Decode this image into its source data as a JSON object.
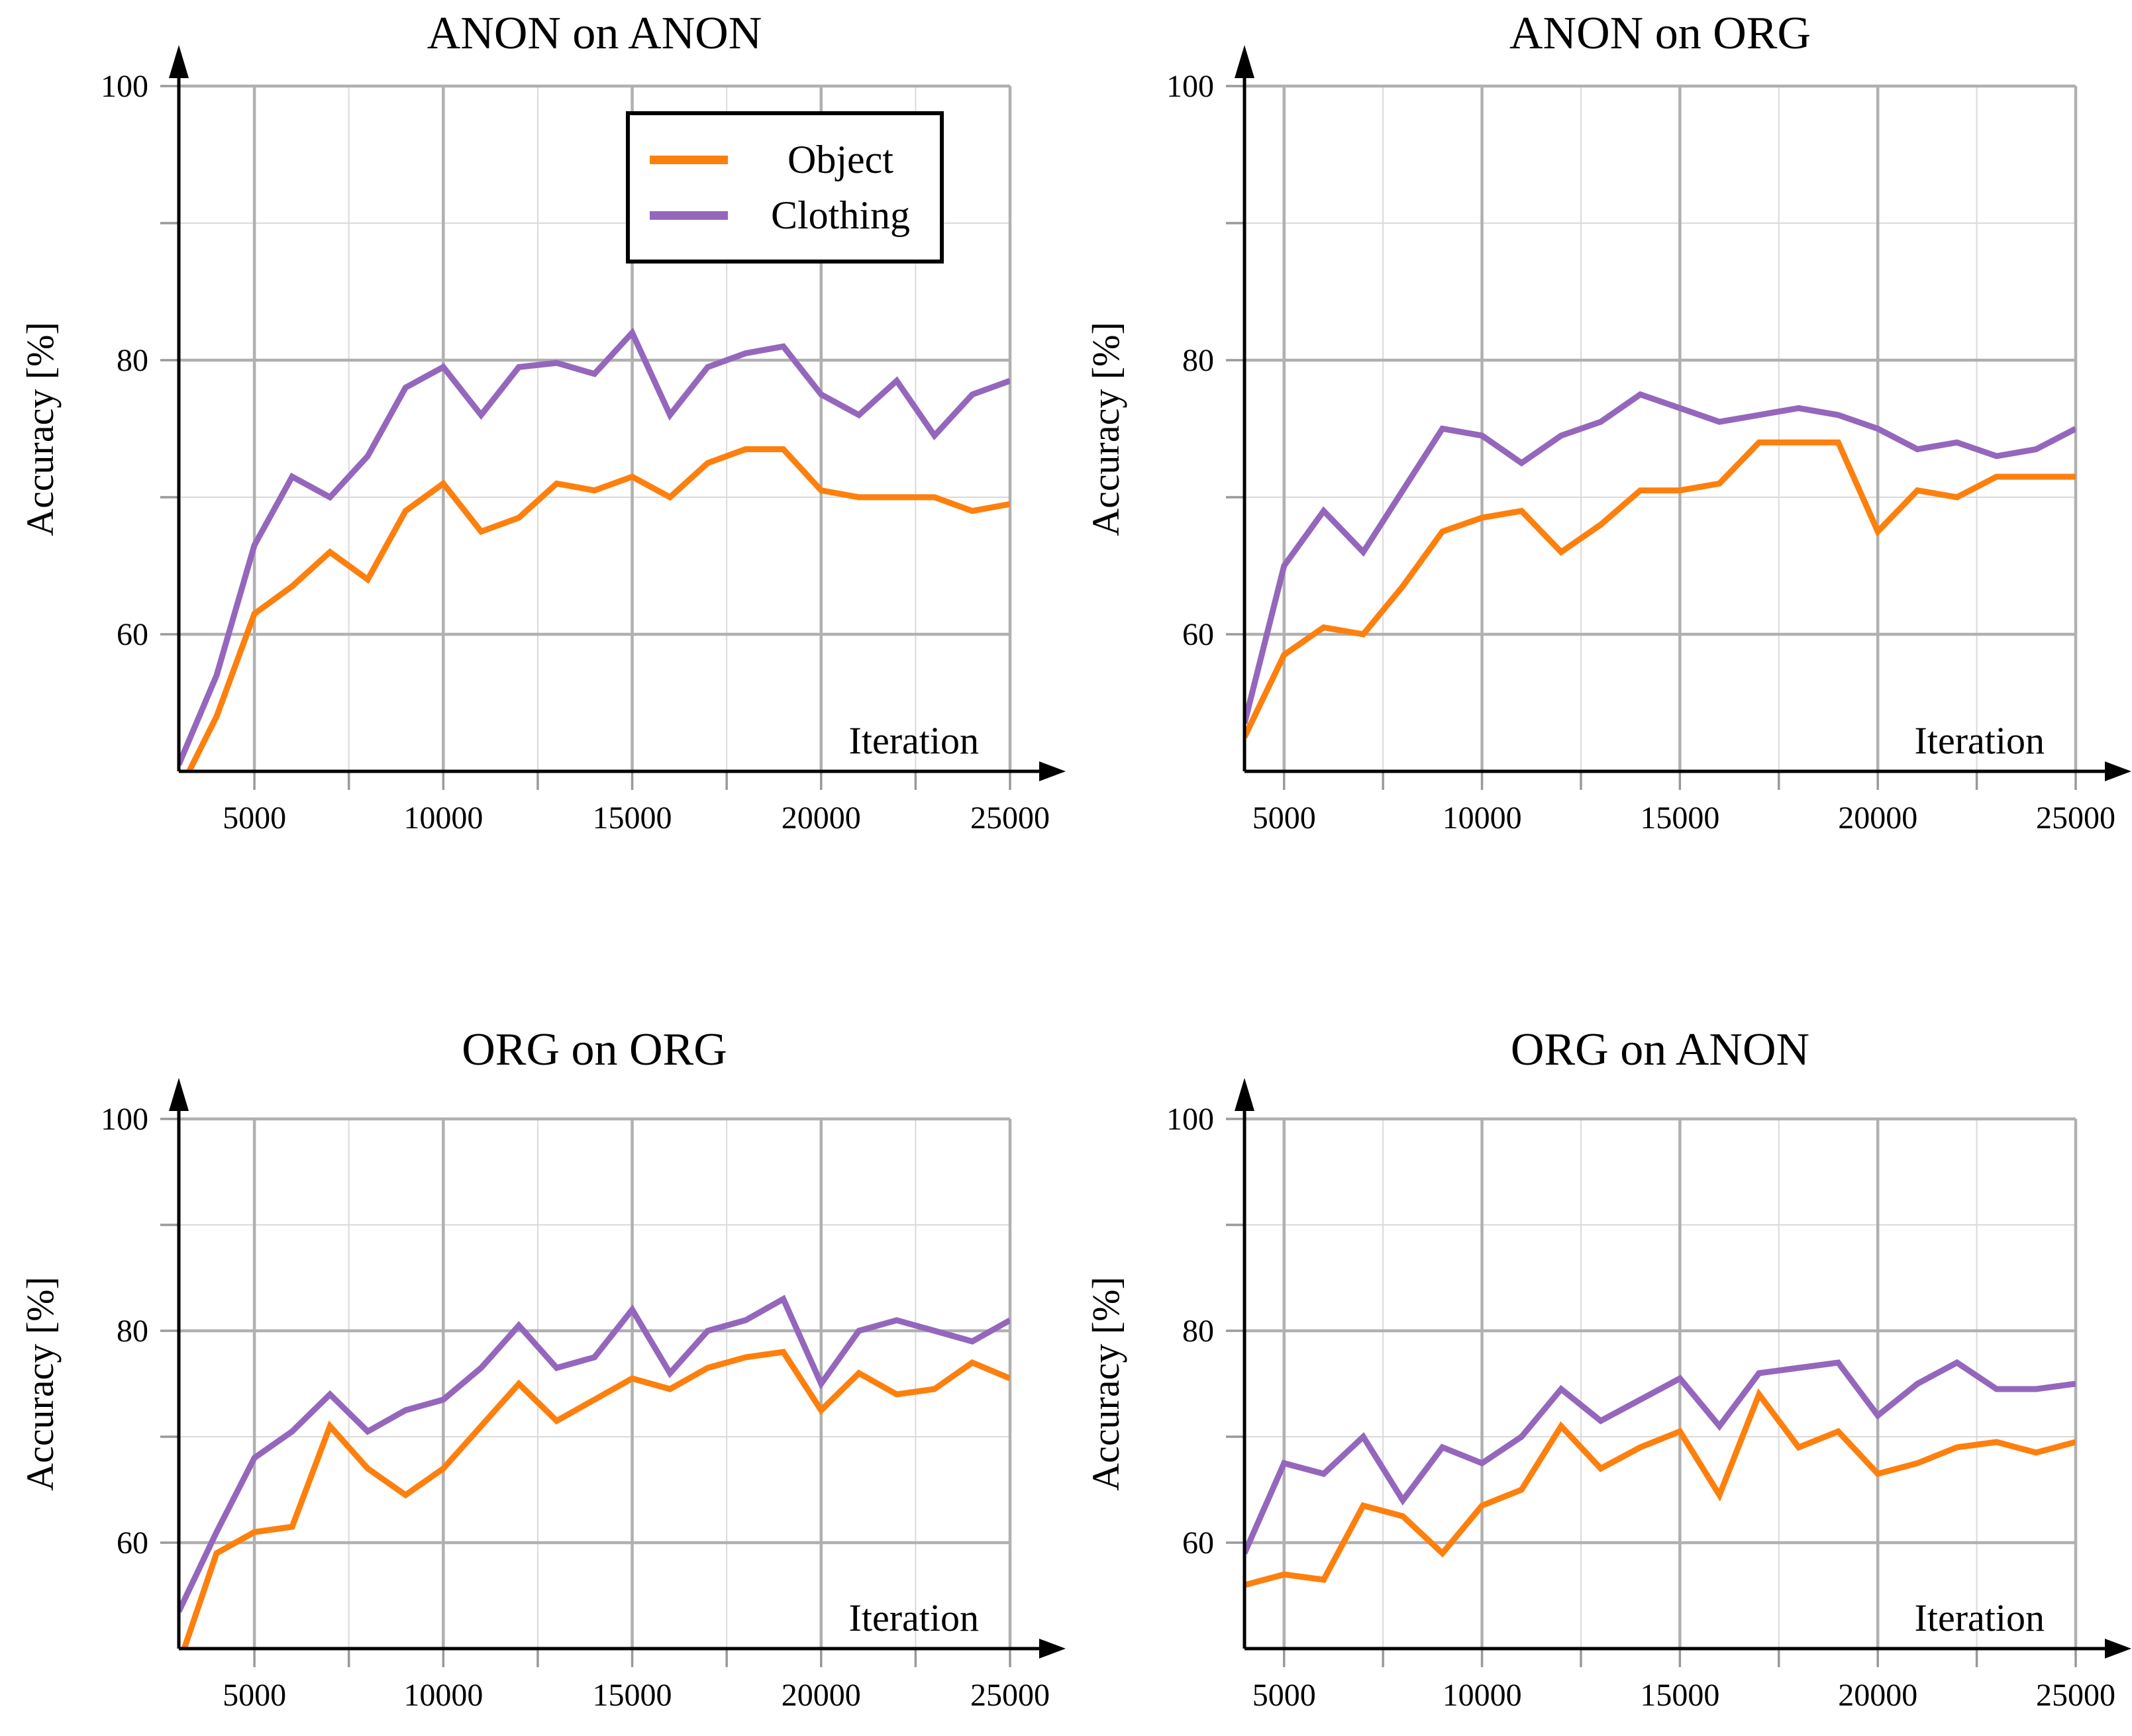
{
  "figure": {
    "description": "2x2 grid of accuracy-vs-iteration line charts",
    "background": "#ffffff"
  },
  "colors": {
    "object": "#fd800e",
    "clothing": "#9467bd",
    "grid_major": "#b0b0b0",
    "grid_minor": "#dadada",
    "tick": "#999999",
    "axis": "#000000",
    "text": "#000000"
  },
  "legend": {
    "position": "top-center of first chart",
    "items": [
      {
        "label": "Object",
        "series": "object"
      },
      {
        "label": "Clothing",
        "series": "clothing"
      }
    ]
  },
  "axes": {
    "ylabel": "Accuracy [%]",
    "xlabel": "Iteration",
    "ylim": [
      50,
      100
    ],
    "ytick_labels": [
      "100",
      "80",
      "60"
    ],
    "yticks_labeled": [
      100,
      80,
      60
    ],
    "yticks_all": [
      60,
      70,
      80,
      90,
      100
    ],
    "ygrid_major": [
      60,
      80,
      100
    ],
    "ygrid_minor": [
      70,
      90
    ],
    "xticks_major": [
      5000,
      10000,
      15000,
      20000,
      25000
    ],
    "xtick_labels": [
      "5000",
      "10000",
      "15000",
      "20000",
      "25000"
    ],
    "xticks_minor": [
      7500,
      12500,
      17500,
      22500
    ],
    "grid": "on"
  },
  "chart_data": [
    {
      "type": "line",
      "title": "ANON on ANON",
      "position": "top-left",
      "xlabel": "Iteration",
      "ylabel": "Accuracy [%]",
      "xlim": [
        3000,
        25000
      ],
      "ylim": [
        50,
        100
      ],
      "x": [
        3000,
        4000,
        5000,
        6000,
        7000,
        8000,
        9000,
        10000,
        11000,
        12000,
        13000,
        14000,
        15000,
        16000,
        17000,
        18000,
        19000,
        20000,
        21000,
        22000,
        23000,
        24000,
        25000
      ],
      "series": [
        {
          "name": "Object",
          "color": "#fd800e",
          "values": [
            48.5,
            54,
            61.5,
            63.5,
            66,
            64,
            69,
            71,
            67.5,
            68.5,
            71,
            70.5,
            71.5,
            70,
            72.5,
            73.5,
            73.5,
            70.5,
            70,
            70,
            70,
            69,
            69.5
          ]
        },
        {
          "name": "Clothing",
          "color": "#9467bd",
          "values": [
            50.5,
            57,
            66.5,
            71.5,
            70,
            73,
            78,
            79.5,
            76,
            79.5,
            79.8,
            79,
            82,
            76,
            79.5,
            80.5,
            81,
            77.5,
            76,
            78.5,
            74.5,
            77.5,
            78.5
          ]
        }
      ]
    },
    {
      "type": "line",
      "title": "ANON on ORG",
      "position": "top-right",
      "xlabel": "Iteration",
      "ylabel": "Accuracy [%]",
      "xlim": [
        4000,
        25000
      ],
      "ylim": [
        50,
        100
      ],
      "x": [
        4000,
        5000,
        6000,
        7000,
        8000,
        9000,
        10000,
        11000,
        12000,
        13000,
        14000,
        15000,
        16000,
        17000,
        18000,
        19000,
        20000,
        21000,
        22000,
        23000,
        24000,
        25000
      ],
      "series": [
        {
          "name": "Object",
          "color": "#fd800e",
          "values": [
            52.5,
            58.5,
            60.5,
            60,
            63.5,
            67.5,
            68.5,
            69,
            66,
            68,
            70.5,
            70.5,
            71,
            74,
            74,
            74,
            67.5,
            70.5,
            70,
            71.5,
            71.5,
            71.5
          ]
        },
        {
          "name": "Clothing",
          "color": "#9467bd",
          "values": [
            53.5,
            65,
            69,
            66,
            70.5,
            75,
            74.5,
            72.5,
            74.5,
            75.5,
            77.5,
            76.5,
            75.5,
            76,
            76.5,
            76,
            75,
            73.5,
            74,
            73,
            73.5,
            75
          ]
        }
      ]
    },
    {
      "type": "line",
      "title": "ORG on ORG",
      "position": "bottom-left",
      "xlabel": "Iteration",
      "ylabel": "Accuracy [%]",
      "xlim": [
        3000,
        25000
      ],
      "ylim": [
        50,
        100
      ],
      "x": [
        3000,
        4000,
        5000,
        6000,
        7000,
        8000,
        9000,
        10000,
        11000,
        12000,
        13000,
        14000,
        15000,
        16000,
        17000,
        18000,
        19000,
        20000,
        21000,
        22000,
        23000,
        24000,
        25000
      ],
      "series": [
        {
          "name": "Object",
          "color": "#fd800e",
          "values": [
            48.5,
            59,
            61,
            61.5,
            71,
            67,
            64.5,
            67,
            71,
            75,
            71.5,
            73.5,
            75.5,
            74.5,
            76.5,
            77.5,
            78,
            72.5,
            76,
            74,
            74.5,
            77,
            75.5
          ]
        },
        {
          "name": "Clothing",
          "color": "#9467bd",
          "values": [
            53.5,
            61,
            68,
            70.5,
            74,
            70.5,
            72.5,
            73.5,
            76.5,
            80.5,
            76.5,
            77.5,
            82,
            76,
            80,
            81,
            83,
            75,
            80,
            81,
            80,
            79,
            81
          ]
        }
      ]
    },
    {
      "type": "line",
      "title": "ORG on ANON",
      "position": "bottom-right",
      "xlabel": "Iteration",
      "ylabel": "Accuracy [%]",
      "xlim": [
        4000,
        25000
      ],
      "ylim": [
        50,
        100
      ],
      "x": [
        4000,
        5000,
        6000,
        7000,
        8000,
        9000,
        10000,
        11000,
        12000,
        13000,
        14000,
        15000,
        16000,
        17000,
        18000,
        19000,
        20000,
        21000,
        22000,
        23000,
        24000,
        25000
      ],
      "series": [
        {
          "name": "Object",
          "color": "#fd800e",
          "values": [
            56,
            57,
            56.5,
            63.5,
            62.5,
            59,
            63.5,
            65,
            71,
            67,
            69,
            70.5,
            64.5,
            74,
            69,
            70.5,
            66.5,
            67.5,
            69,
            69.5,
            68.5,
            69.5
          ]
        },
        {
          "name": "Clothing",
          "color": "#9467bd",
          "values": [
            59,
            67.5,
            66.5,
            70,
            64,
            69,
            67.5,
            70,
            74.5,
            71.5,
            73.5,
            75.5,
            71,
            76,
            76.5,
            77,
            72,
            75,
            77,
            74.5,
            74.5,
            75
          ]
        }
      ]
    }
  ]
}
